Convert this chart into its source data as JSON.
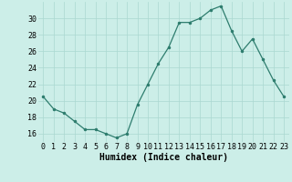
{
  "x": [
    0,
    1,
    2,
    3,
    4,
    5,
    6,
    7,
    8,
    9,
    10,
    11,
    12,
    13,
    14,
    15,
    16,
    17,
    18,
    19,
    20,
    21,
    22,
    23
  ],
  "y": [
    20.5,
    19.0,
    18.5,
    17.5,
    16.5,
    16.5,
    16.0,
    15.5,
    16.0,
    19.5,
    22.0,
    24.5,
    26.5,
    29.5,
    29.5,
    30.0,
    31.0,
    31.5,
    28.5,
    26.0,
    27.5,
    25.0,
    22.5,
    20.5
  ],
  "line_color": "#2e7d6e",
  "marker_color": "#2e7d6e",
  "bg_color": "#cceee8",
  "grid_color": "#aad8d0",
  "xlabel": "Humidex (Indice chaleur)",
  "ylim": [
    15.0,
    32.0
  ],
  "yticks": [
    16,
    18,
    20,
    22,
    24,
    26,
    28,
    30
  ],
  "xtick_labels": [
    "0",
    "1",
    "2",
    "3",
    "4",
    "5",
    "6",
    "7",
    "8",
    "9",
    "10",
    "11",
    "12",
    "13",
    "14",
    "15",
    "16",
    "17",
    "18",
    "19",
    "20",
    "21",
    "22",
    "23"
  ],
  "axis_fontsize": 7,
  "tick_fontsize": 6,
  "xlabel_fontsize": 7
}
